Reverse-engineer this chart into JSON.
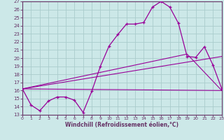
{
  "xlabel": "Windchill (Refroidissement éolien,°C)",
  "bg_color": "#cce8e8",
  "grid_color": "#aacccc",
  "line_color": "#990099",
  "spine_color": "#663366",
  "xmin": 0,
  "xmax": 23,
  "ymin": 13,
  "ymax": 27,
  "series1_x": [
    0,
    1,
    2,
    3,
    4,
    5,
    6,
    7,
    8,
    9,
    10,
    11,
    12,
    13,
    14,
    15,
    16,
    17,
    18,
    19,
    20,
    21,
    22,
    23
  ],
  "series1_y": [
    16.2,
    14.2,
    13.5,
    14.7,
    15.2,
    15.2,
    14.8,
    13.3,
    15.9,
    19.0,
    21.5,
    22.9,
    24.2,
    24.2,
    24.4,
    26.3,
    27.0,
    26.3,
    24.3,
    20.2,
    20.1,
    21.4,
    19.1,
    16.2
  ],
  "line2_x": [
    0,
    23
  ],
  "line2_y": [
    16.2,
    16.0
  ],
  "line3_x": [
    0,
    23
  ],
  "line3_y": [
    16.2,
    20.2
  ],
  "line4_x": [
    0,
    19,
    23
  ],
  "line4_y": [
    16.2,
    20.5,
    16.0
  ],
  "xtick_labels": [
    "0",
    "1",
    "2",
    "3",
    "4",
    "5",
    "6",
    "7",
    "8",
    "9",
    "10",
    "11",
    "12",
    "13",
    "14",
    "15",
    "16",
    "17",
    "18",
    "19",
    "20",
    "21",
    "22",
    "23"
  ],
  "ytick_labels": [
    "13",
    "14",
    "15",
    "16",
    "17",
    "18",
    "19",
    "20",
    "21",
    "22",
    "23",
    "24",
    "25",
    "26",
    "27"
  ]
}
